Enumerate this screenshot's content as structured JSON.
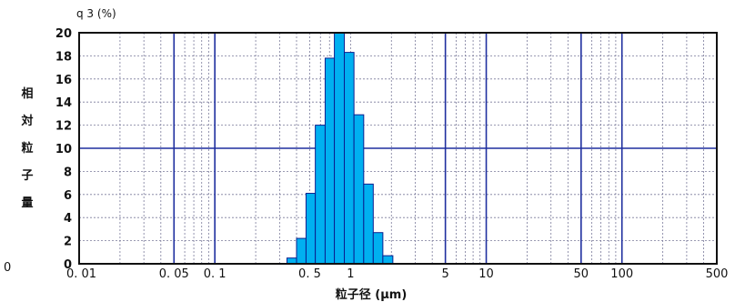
{
  "chart_data": {
    "type": "bar",
    "title": "",
    "top_label": "q 3 (%)",
    "ylabel_chars": [
      "相",
      "対",
      "粒",
      "子",
      "量"
    ],
    "xlabel": "粒子径 (μm)",
    "left_edge_text": "0",
    "x_scale": "log",
    "xlim": [
      0.01,
      500
    ],
    "ylim": [
      0,
      20
    ],
    "yticks": [
      0,
      2,
      4,
      6,
      8,
      10,
      12,
      14,
      16,
      18,
      20
    ],
    "ytick_labels": [
      "0",
      "2",
      "4",
      "6",
      "8",
      "10",
      "12",
      "14",
      "16",
      "18",
      "20"
    ],
    "xtick_labels": [
      {
        "value": 0.01,
        "label": "0. 01"
      },
      {
        "value": 0.05,
        "label": "0. 05"
      },
      {
        "value": 0.1,
        "label": "0. 1"
      },
      {
        "value": 0.5,
        "label": "0. 5"
      },
      {
        "value": 1,
        "label": "1"
      },
      {
        "value": 5,
        "label": "5"
      },
      {
        "value": 10,
        "label": "10"
      },
      {
        "value": 50,
        "label": "50"
      },
      {
        "value": 100,
        "label": "100"
      },
      {
        "value": 500,
        "label": "500"
      }
    ],
    "major_vlines": [
      0.05,
      0.1,
      5,
      10,
      50,
      100
    ],
    "major_hlines": [
      10
    ],
    "bins": [
      {
        "from": 0.34,
        "to": 0.4,
        "value": 0.5
      },
      {
        "from": 0.4,
        "to": 0.47,
        "value": 2.2
      },
      {
        "from": 0.47,
        "to": 0.55,
        "value": 6.1
      },
      {
        "from": 0.55,
        "to": 0.65,
        "value": 12.0
      },
      {
        "from": 0.65,
        "to": 0.76,
        "value": 17.8
      },
      {
        "from": 0.76,
        "to": 0.9,
        "value": 20.0
      },
      {
        "from": 0.9,
        "to": 1.06,
        "value": 18.3
      },
      {
        "from": 1.06,
        "to": 1.25,
        "value": 12.9
      },
      {
        "from": 1.25,
        "to": 1.47,
        "value": 6.9
      },
      {
        "from": 1.47,
        "to": 1.73,
        "value": 2.7
      },
      {
        "from": 1.73,
        "to": 2.05,
        "value": 0.7
      }
    ],
    "colors": {
      "bar_fill": "#00b0f0",
      "bar_stroke": "#0a1f8f",
      "major_grid": "#1f2f9f",
      "minor_grid": "#7a7a9a",
      "frame": "#111111"
    }
  }
}
